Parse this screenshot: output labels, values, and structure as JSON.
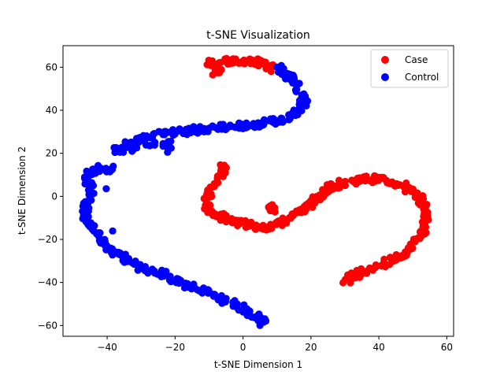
{
  "chart_data": {
    "type": "scatter",
    "title": "t-SNE Visualization",
    "xlabel": "t-SNE Dimension 1",
    "ylabel": "t-SNE Dimension 2",
    "xlim": [
      -53,
      62
    ],
    "ylim": [
      -65,
      70
    ],
    "xticks": [
      -40,
      -20,
      0,
      20,
      40,
      60
    ],
    "yticks": [
      -60,
      -40,
      -20,
      0,
      20,
      40,
      60
    ],
    "grid": false,
    "legend_position": "top-right",
    "series": [
      {
        "name": "Case",
        "color": "#ff0000",
        "path": [
          [
            -10,
            62
          ],
          [
            -8,
            62
          ],
          [
            -5,
            62.5
          ],
          [
            -2,
            62.5
          ],
          [
            1,
            63
          ],
          [
            3,
            62.5
          ],
          [
            5,
            62
          ],
          [
            7,
            61
          ],
          [
            9,
            59.5
          ],
          [
            -8,
            58
          ],
          [
            -7,
            60
          ],
          [
            -9,
            60
          ],
          [
            -6,
            14
          ],
          [
            -5,
            12
          ],
          [
            -7,
            9
          ],
          [
            -9,
            5
          ],
          [
            -10,
            1
          ],
          [
            -11,
            -3
          ],
          [
            -10,
            -6
          ],
          [
            -8,
            -8
          ],
          [
            -6,
            -10
          ],
          [
            -4,
            -11
          ],
          [
            -2,
            -12
          ],
          [
            1,
            -13
          ],
          [
            4,
            -14
          ],
          [
            7,
            -14
          ],
          [
            10,
            -13
          ],
          [
            13,
            -11
          ],
          [
            15,
            -9
          ],
          [
            17,
            -7
          ],
          [
            19,
            -5
          ],
          [
            21,
            -2
          ],
          [
            23,
            1
          ],
          [
            25,
            3
          ],
          [
            27,
            5
          ],
          [
            29,
            6
          ],
          [
            32,
            7
          ],
          [
            35,
            8
          ],
          [
            38,
            8
          ],
          [
            41,
            8
          ],
          [
            44,
            7
          ],
          [
            47,
            5
          ],
          [
            49,
            3
          ],
          [
            51,
            0
          ],
          [
            53,
            -3
          ],
          [
            54,
            -7
          ],
          [
            54,
            -11
          ],
          [
            53,
            -15
          ],
          [
            52,
            -19
          ],
          [
            50,
            -23
          ],
          [
            48,
            -26
          ],
          [
            46,
            -28
          ],
          [
            43,
            -30
          ],
          [
            40,
            -32
          ],
          [
            37,
            -34
          ],
          [
            34,
            -36
          ],
          [
            32,
            -37.5
          ],
          [
            30,
            -39
          ],
          [
            8,
            -5
          ],
          [
            9,
            -6
          ]
        ]
      },
      {
        "name": "Control",
        "color": "#0000ff",
        "path": [
          [
            10,
            60
          ],
          [
            12,
            57
          ],
          [
            14,
            55
          ],
          [
            16,
            52
          ],
          [
            17,
            48
          ],
          [
            18,
            44
          ],
          [
            17,
            41
          ],
          [
            15,
            38
          ],
          [
            12,
            36
          ],
          [
            9,
            35
          ],
          [
            6,
            34
          ],
          [
            3,
            33
          ],
          [
            0,
            33
          ],
          [
            -3,
            33
          ],
          [
            -6,
            32
          ],
          [
            -9,
            32
          ],
          [
            -12,
            31
          ],
          [
            -15,
            31
          ],
          [
            -18,
            30
          ],
          [
            -21,
            30
          ],
          [
            -24,
            29
          ],
          [
            -27,
            28
          ],
          [
            -30,
            26
          ],
          [
            -32,
            25
          ],
          [
            -34,
            24
          ],
          [
            -36,
            22
          ],
          [
            -37,
            21.5
          ],
          [
            -29,
            24
          ],
          [
            -22,
            25
          ],
          [
            -21,
            21.5
          ],
          [
            -39,
            13
          ],
          [
            -41,
            13
          ],
          [
            -43,
            13
          ],
          [
            -45,
            11
          ],
          [
            -46,
            8
          ],
          [
            -45,
            4
          ],
          [
            -45,
            0
          ],
          [
            -46,
            -4
          ],
          [
            -47,
            -7
          ],
          [
            -46,
            -11
          ],
          [
            -44,
            -15
          ],
          [
            -42,
            -19
          ],
          [
            -40,
            -23
          ],
          [
            -38,
            -25
          ],
          [
            -36,
            -28
          ],
          [
            -33,
            -31
          ],
          [
            -30,
            -33
          ],
          [
            -27,
            -35
          ],
          [
            -24,
            -36
          ],
          [
            -21,
            -38
          ],
          [
            -18,
            -40
          ],
          [
            -15,
            -42
          ],
          [
            -12,
            -44
          ],
          [
            -9,
            -46
          ],
          [
            -6,
            -48
          ],
          [
            -3,
            -50
          ],
          [
            0,
            -52
          ],
          [
            2,
            -54
          ],
          [
            4,
            -56
          ],
          [
            5,
            -57.5
          ],
          [
            6,
            -59
          ],
          [
            -41,
            5
          ],
          [
            -38,
            -16
          ]
        ]
      }
    ]
  }
}
